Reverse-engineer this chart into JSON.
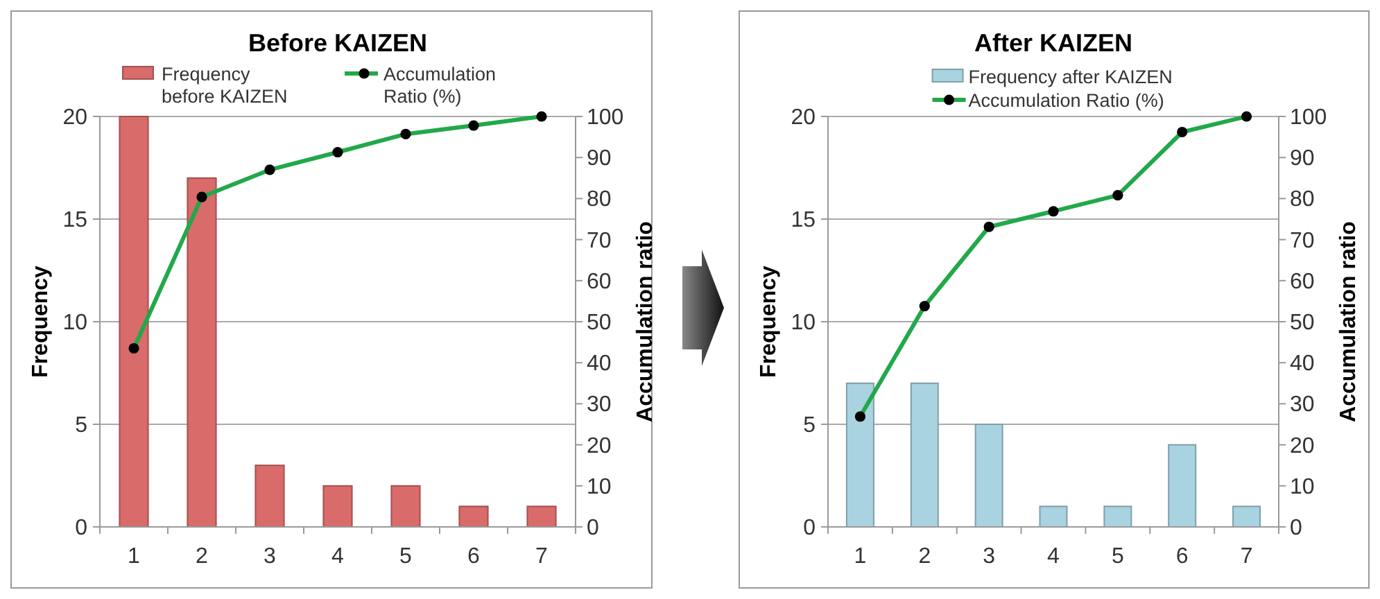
{
  "chart_data": [
    {
      "type": "bar",
      "title": "Before  KAIZEN",
      "ylabel": "Frequency",
      "y2label": "Accumulation ratio",
      "categories": [
        "1",
        "2",
        "3",
        "4",
        "5",
        "6",
        "7"
      ],
      "series": [
        {
          "name": "Frequency before KAIZEN",
          "color": "#d96b6b",
          "values": [
            20,
            17,
            3,
            2,
            2,
            1,
            1
          ]
        },
        {
          "name": "Accumulation Ratio (%)",
          "type": "line",
          "axis": "y2",
          "color": "#22a84a",
          "values": [
            43.5,
            80.4,
            87,
            91.3,
            95.7,
            97.8,
            100
          ]
        }
      ],
      "ylim": [
        0,
        20
      ],
      "yticks": [
        0,
        5,
        10,
        15,
        20
      ],
      "y2lim": [
        0,
        100
      ],
      "y2ticks": [
        0,
        10,
        20,
        30,
        40,
        50,
        60,
        70,
        80,
        90,
        100
      ],
      "grid": "y",
      "legend": "top",
      "marker": "circle"
    },
    {
      "type": "bar",
      "title": "After  KAIZEN",
      "ylabel": "Frequency",
      "y2label": "Accumulation ratio",
      "categories": [
        "1",
        "2",
        "3",
        "4",
        "5",
        "6",
        "7"
      ],
      "series": [
        {
          "name": "Frequency after KAIZEN",
          "color": "#a9d3e0",
          "values": [
            7,
            7,
            5,
            1,
            1,
            4,
            1
          ]
        },
        {
          "name": "Accumulation Ratio (%)",
          "type": "line",
          "axis": "y2",
          "color": "#22a84a",
          "values": [
            26.9,
            53.8,
            73.1,
            76.9,
            80.8,
            96.2,
            100
          ]
        }
      ],
      "ylim": [
        0,
        20
      ],
      "yticks": [
        0,
        5,
        10,
        15,
        20
      ],
      "y2lim": [
        0,
        100
      ],
      "y2ticks": [
        0,
        10,
        20,
        30,
        40,
        50,
        60,
        70,
        80,
        90,
        100
      ],
      "grid": "y",
      "legend": "top",
      "marker": "circle"
    }
  ]
}
